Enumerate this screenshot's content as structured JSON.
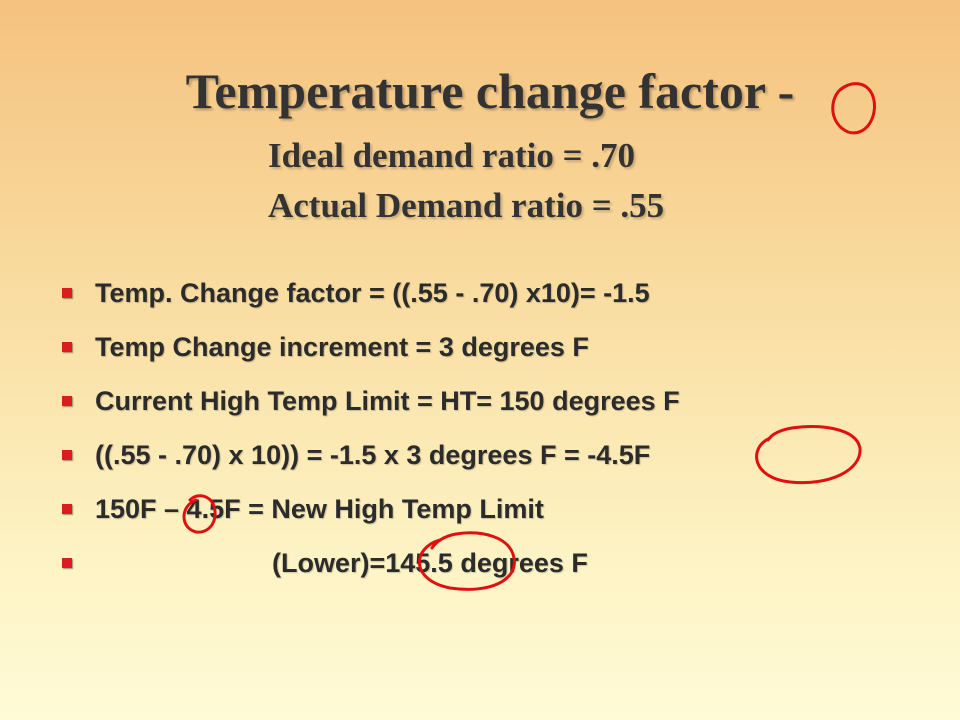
{
  "header": {
    "title": "Temperature change factor -",
    "subtitle_lines": [
      "Ideal demand ratio = .70",
      "Actual Demand ratio = .55"
    ]
  },
  "bullets": [
    "Temp. Change factor = ((.55 - .70) x10)= -1.5",
    "Temp Change increment = 3 degrees F",
    "Current High Temp Limit = HT= 150 degrees F",
    "((.55 - .70) x 10)) = -1.5 x 3 degrees F = -4.5F",
    "150F – 4.5F = New High Temp Limit",
    "(Lower)=145.5 degrees F"
  ]
}
